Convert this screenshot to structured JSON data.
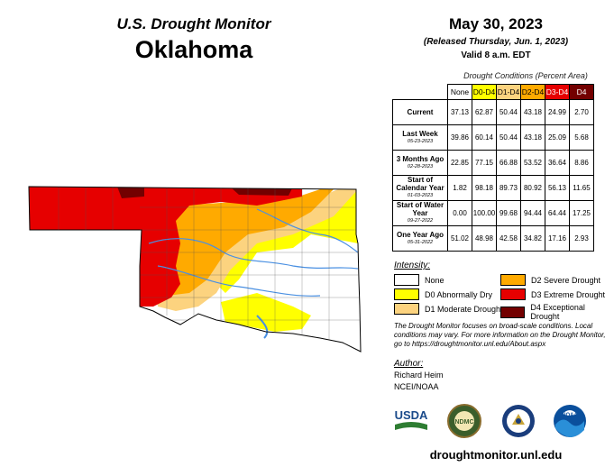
{
  "header": {
    "program": "U.S. Drought Monitor",
    "state": "Oklahoma",
    "date": "May 30, 2023",
    "released": "(Released Thursday, Jun. 1, 2023)",
    "valid": "Valid 8 a.m. EDT"
  },
  "table": {
    "caption": "Drought Conditions (Percent Area)",
    "columns": [
      "None",
      "D0-D4",
      "D1-D4",
      "D2-D4",
      "D3-D4",
      "D4"
    ],
    "column_colors": [
      "#ffffff",
      "#ffff00",
      "#fcd37f",
      "#ffaa00",
      "#e60000",
      "#730000"
    ],
    "rows": [
      {
        "label": "Current",
        "sub": "",
        "values": [
          "37.13",
          "62.87",
          "50.44",
          "43.18",
          "24.99",
          "2.70"
        ]
      },
      {
        "label": "Last Week",
        "sub": "05-23-2023",
        "values": [
          "39.86",
          "60.14",
          "50.44",
          "43.18",
          "25.09",
          "5.68"
        ]
      },
      {
        "label": "3 Months Ago",
        "sub": "02-28-2023",
        "values": [
          "22.85",
          "77.15",
          "66.88",
          "53.52",
          "36.64",
          "8.86"
        ]
      },
      {
        "label": "Start of Calendar Year",
        "sub": "01-03-2023",
        "values": [
          "1.82",
          "98.18",
          "89.73",
          "80.92",
          "56.13",
          "11.65"
        ]
      },
      {
        "label": "Start of Water Year",
        "sub": "09-27-2022",
        "values": [
          "0.00",
          "100.00",
          "99.68",
          "94.44",
          "64.44",
          "17.25"
        ]
      },
      {
        "label": "One Year Ago",
        "sub": "05-31-2022",
        "values": [
          "51.02",
          "48.98",
          "42.58",
          "34.82",
          "17.16",
          "2.93"
        ]
      }
    ]
  },
  "legend": {
    "title": "Intensity:",
    "items": [
      {
        "label": "None",
        "color": "#ffffff"
      },
      {
        "label": "D0 Abnormally Dry",
        "color": "#ffff00"
      },
      {
        "label": "D1 Moderate Drought",
        "color": "#fcd37f"
      },
      {
        "label": "D2 Severe Drought",
        "color": "#ffaa00"
      },
      {
        "label": "D3 Extreme Drought",
        "color": "#e60000"
      },
      {
        "label": "D4 Exceptional Drought",
        "color": "#730000"
      }
    ]
  },
  "note": "The Drought Monitor focuses on broad-scale conditions. Local conditions may vary. For more information on the Drought Monitor, go to https://droughtmonitor.unl.edu/About.aspx",
  "author": {
    "title": "Author:",
    "name": "Richard Heim",
    "org": "NCEI/NOAA"
  },
  "logos": {
    "usda": "USDA",
    "ndmc": "NDMC",
    "noaa": "NOAA"
  },
  "site": "droughtmonitor.unl.edu"
}
